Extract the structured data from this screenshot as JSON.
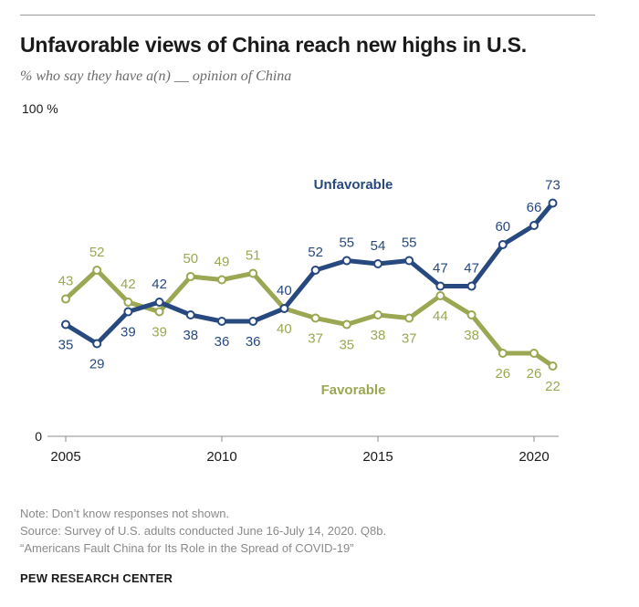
{
  "title": "Unfavorable views of China reach new highs in U.S.",
  "subtitle": "% who say they have a(n) __ opinion of China",
  "notes": {
    "note": "Note: Don’t know responses not shown.",
    "source": "Source: Survey of U.S. adults conducted June 16-July 14, 2020. Q8b.",
    "report": "“Americans Fault China for Its Role in the Spread of COVID-19”"
  },
  "brand": "PEW RESEARCH CENTER",
  "colors": {
    "unfavorable": "#27497f",
    "favorable": "#9ba752"
  },
  "chart_data": {
    "type": "line",
    "title": "Unfavorable views of China reach new highs in U.S.",
    "x": [
      2005,
      2006,
      2007,
      2008,
      2009,
      2010,
      2011,
      2012,
      2013,
      2014,
      2015,
      2016,
      2017,
      2018,
      2019,
      2020,
      2020.6
    ],
    "series": [
      {
        "name": "Unfavorable",
        "values": [
          35,
          29,
          39,
          42,
          38,
          36,
          36,
          40,
          52,
          55,
          54,
          55,
          47,
          47,
          60,
          66,
          73
        ]
      },
      {
        "name": "Favorable",
        "values": [
          43,
          52,
          42,
          39,
          50,
          49,
          51,
          40,
          37,
          35,
          38,
          37,
          44,
          38,
          26,
          26,
          22
        ]
      }
    ],
    "ylim": [
      0,
      100
    ],
    "yticks": [
      {
        "value": 0,
        "label": "0"
      },
      {
        "value": 100,
        "label": "100 %"
      }
    ],
    "xticks": [
      {
        "value": 2005,
        "label": "2005"
      },
      {
        "value": 2010,
        "label": "2010"
      },
      {
        "value": 2015,
        "label": "2015"
      },
      {
        "value": 2020,
        "label": "2020"
      }
    ],
    "legend": "inline labels"
  }
}
